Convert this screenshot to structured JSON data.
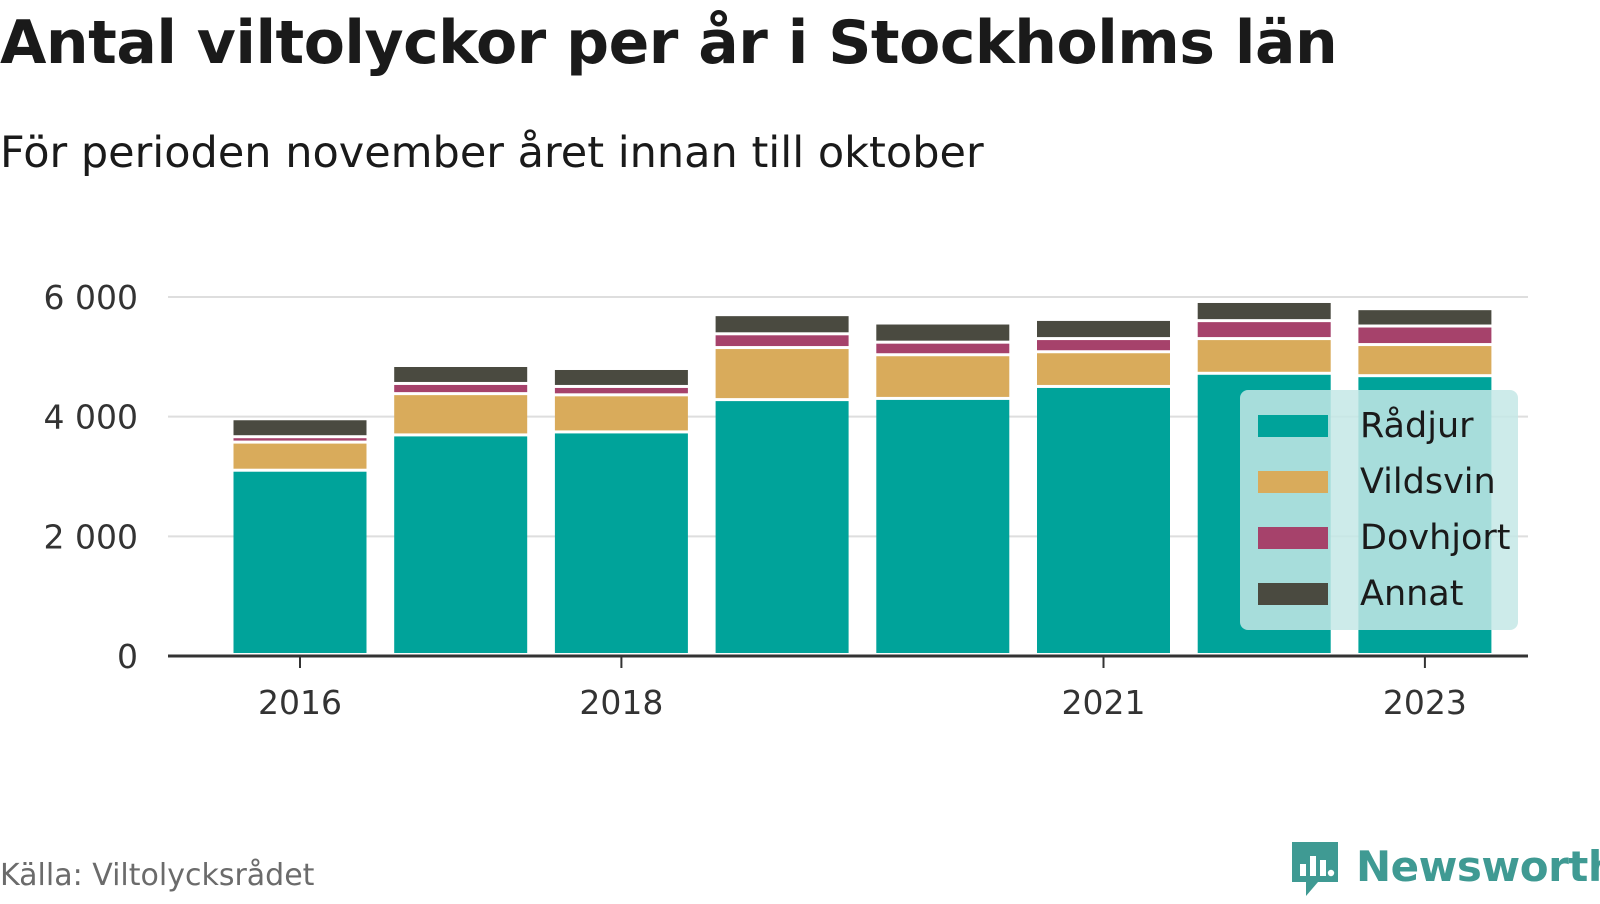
{
  "header": {
    "title": "Antal viltolyckor per år i Stockholms län",
    "subtitle": "För perioden november året innan till oktober"
  },
  "footer": {
    "source": "Källa: Viltolycksrådet",
    "brand": "Newsworthy",
    "brand_icon": "newsworthy-logo-icon"
  },
  "colors": {
    "radjur": "#00a39a",
    "vildsvin": "#d9ab5b",
    "dovhjort": "#a6426b",
    "annat": "#4a4a40",
    "grid": "#dedede",
    "axis": "#333333",
    "brand": "#3f9a93"
  },
  "chart_data": {
    "type": "bar",
    "stacked": true,
    "x": [
      2016,
      2017,
      2018,
      2019,
      2020,
      2021,
      2022,
      2023
    ],
    "x_tick_labels": [
      "2016",
      "2018",
      "2021",
      "2023"
    ],
    "x_tick_values": [
      2016,
      2018,
      2021,
      2023
    ],
    "y_tick_labels": [
      "0",
      "2 000",
      "4 000",
      "6 000"
    ],
    "y_tick_values": [
      0,
      2000,
      4000,
      6000
    ],
    "ylim": [
      0,
      6000
    ],
    "grid": true,
    "legend_position": "right",
    "series": [
      {
        "name": "Rådjur",
        "color": "#00a39a",
        "values": [
          3080,
          3670,
          3720,
          4260,
          4280,
          4480,
          4700,
          4660
        ]
      },
      {
        "name": "Vildsvin",
        "color": "#d9ab5b",
        "values": [
          470,
          690,
          620,
          870,
          730,
          580,
          580,
          520
        ]
      },
      {
        "name": "Dovhjort",
        "color": "#a6426b",
        "values": [
          90,
          170,
          140,
          230,
          210,
          220,
          300,
          310
        ]
      },
      {
        "name": "Annat",
        "color": "#4a4a40",
        "values": [
          300,
          300,
          300,
          320,
          320,
          320,
          320,
          290
        ]
      }
    ]
  }
}
